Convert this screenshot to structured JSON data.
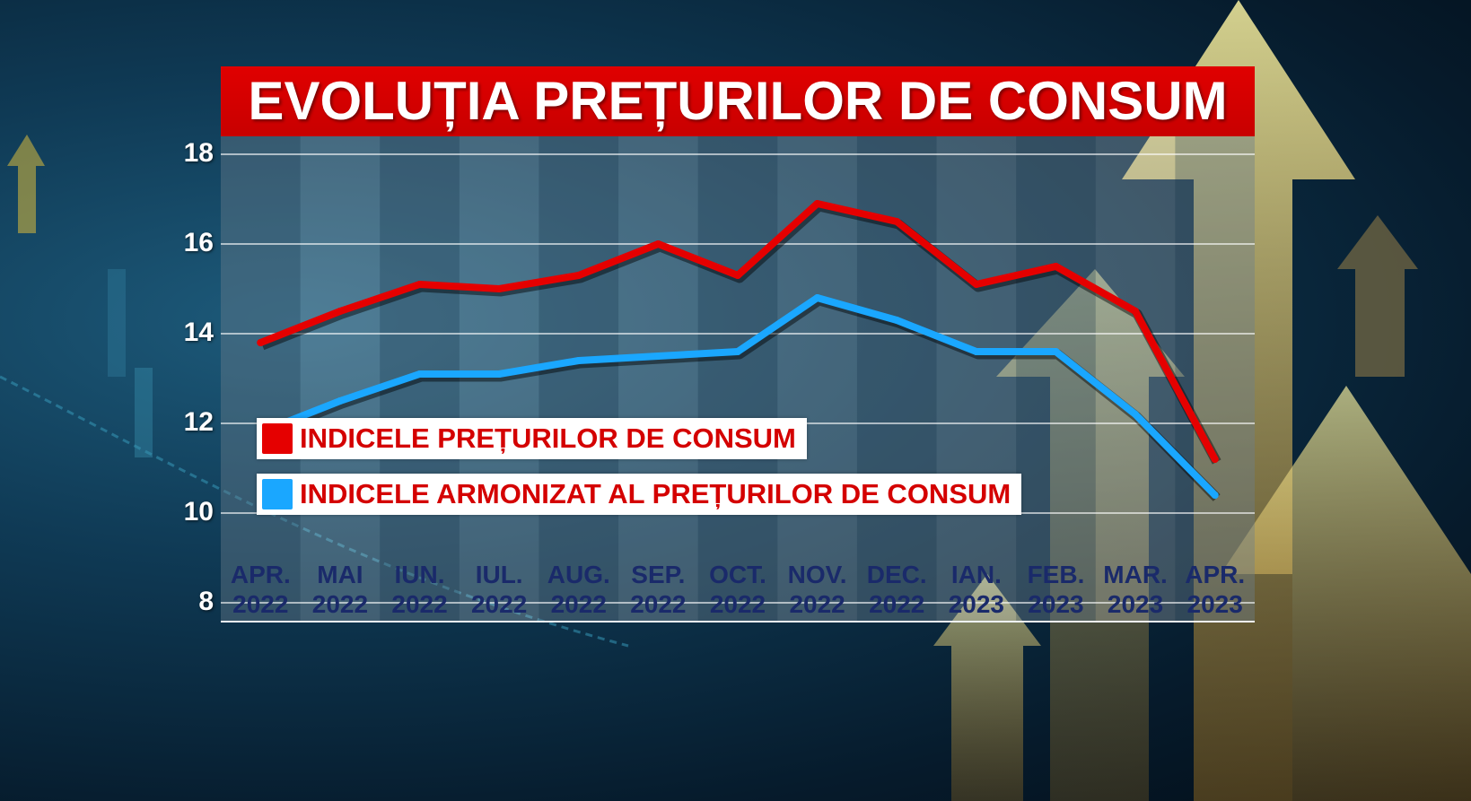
{
  "chart_data": {
    "type": "line",
    "title": "EVOLUȚIA PREȚURILOR DE CONSUM",
    "xlabel": "",
    "ylabel": "",
    "ylim": [
      8,
      18
    ],
    "yticks": [
      8,
      10,
      12,
      14,
      16,
      18
    ],
    "categories": [
      {
        "month": "APR.",
        "year": "2022"
      },
      {
        "month": "MAI",
        "year": "2022"
      },
      {
        "month": "IUN.",
        "year": "2022"
      },
      {
        "month": "IUL.",
        "year": "2022"
      },
      {
        "month": "AUG.",
        "year": "2022"
      },
      {
        "month": "SEP.",
        "year": "2022"
      },
      {
        "month": "OCT.",
        "year": "2022"
      },
      {
        "month": "NOV.",
        "year": "2022"
      },
      {
        "month": "DEC.",
        "year": "2022"
      },
      {
        "month": "IAN.",
        "year": "2023"
      },
      {
        "month": "FEB.",
        "year": "2023"
      },
      {
        "month": "MAR.",
        "year": "2023"
      },
      {
        "month": "APR.",
        "year": "2023"
      }
    ],
    "series": [
      {
        "name": "INDICELE PREȚURILOR DE CONSUM",
        "color": "#e50000",
        "values": [
          13.8,
          14.5,
          15.1,
          15.0,
          15.3,
          16.0,
          15.3,
          16.9,
          16.5,
          15.1,
          15.5,
          14.5,
          11.2
        ]
      },
      {
        "name": "INDICELE ARMONIZAT AL PREȚURILOR DE CONSUM",
        "color": "#1aa7ff",
        "values": [
          11.8,
          12.5,
          13.1,
          13.1,
          13.4,
          13.5,
          13.6,
          14.8,
          14.3,
          13.6,
          13.6,
          12.2,
          10.4
        ]
      }
    ],
    "legend_position": "middle-left"
  }
}
